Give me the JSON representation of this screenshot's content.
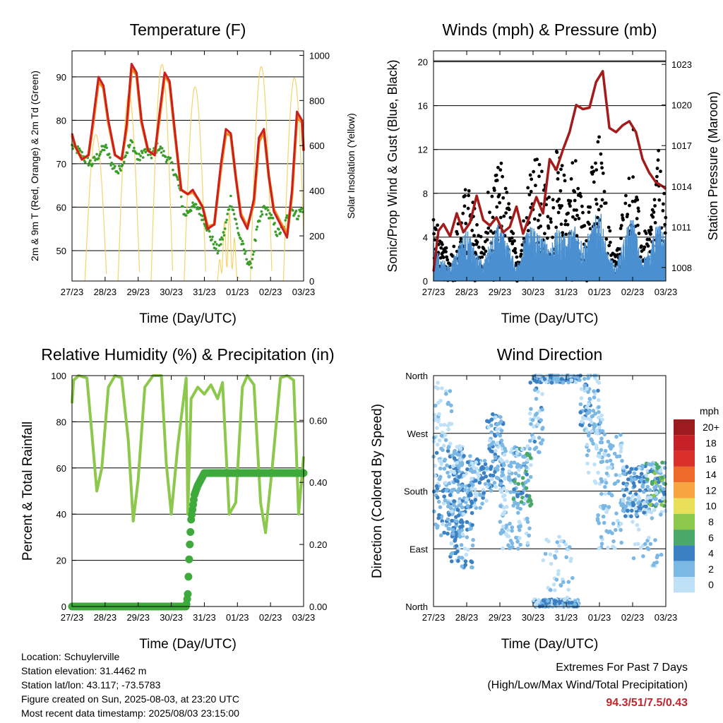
{
  "colors": {
    "temp_red": "#cc1f1f",
    "temp_orange": "#f08c1e",
    "dewpoint_green": "#3a9d2a",
    "solar_yellow": "#f3d56b",
    "gust_black": "#000000",
    "wind_blue": "#4a90d0",
    "pressure_maroon": "#a31b1b",
    "rh_lightgreen": "#8cc84b",
    "rain_green": "#3faa3c",
    "highlight_red": "#c0272d"
  },
  "x_tick_labels": [
    "27/23",
    "28/23",
    "29/23",
    "30/23",
    "31/23",
    "01/23",
    "02/23",
    "03/23"
  ],
  "chart_data": [
    {
      "type": "line",
      "title": "Temperature (F)",
      "xlabel": "Time (Day/UTC)",
      "ylabel": "2m & 9m T (Red, Orange) & 2m Td (Green)",
      "ylabel_right": "Solar Insolation (Yellow)",
      "ylim": [
        43,
        96
      ],
      "yticks": [
        50,
        60,
        70,
        80,
        90
      ],
      "ylim_right": [
        0,
        1020
      ],
      "yticks_right": [
        0,
        200,
        400,
        600,
        800,
        1000
      ],
      "xlim": [
        0,
        7
      ],
      "grid": true,
      "series": [
        {
          "key": "t2m",
          "x": [
            0,
            0.1,
            0.3,
            0.5,
            0.65,
            0.8,
            0.95,
            1.1,
            1.3,
            1.5,
            1.65,
            1.8,
            1.95,
            2.1,
            2.3,
            2.5,
            2.65,
            2.8,
            2.95,
            3.1,
            3.3,
            3.5,
            3.65,
            3.8,
            3.95,
            4.1,
            4.3,
            4.5,
            4.65,
            4.8,
            4.95,
            5.1,
            5.3,
            5.5,
            5.65,
            5.8,
            5.95,
            6.1,
            6.3,
            6.5,
            6.65,
            6.8,
            6.95,
            7
          ],
          "y": [
            77,
            74,
            71,
            72,
            81,
            90,
            88,
            80,
            72,
            71,
            79,
            93,
            91,
            80,
            73,
            72,
            82,
            91,
            89,
            78,
            64,
            63,
            64,
            62,
            60,
            55,
            56,
            70,
            78,
            77,
            67,
            58,
            55,
            62,
            76,
            78,
            67,
            59,
            56,
            53,
            64,
            82,
            80,
            73
          ]
        },
        {
          "key": "t9m",
          "x": [
            0,
            0.1,
            0.3,
            0.5,
            0.65,
            0.8,
            0.95,
            1.1,
            1.3,
            1.5,
            1.65,
            1.8,
            1.95,
            2.1,
            2.3,
            2.5,
            2.65,
            2.8,
            2.95,
            3.1,
            3.3,
            3.5,
            3.65,
            3.8,
            3.95,
            4.1,
            4.3,
            4.5,
            4.65,
            4.8,
            4.95,
            5.1,
            5.3,
            5.5,
            5.65,
            5.8,
            5.95,
            6.1,
            6.3,
            6.5,
            6.65,
            6.8,
            6.95,
            7
          ],
          "y": [
            76.5,
            74,
            71,
            72,
            80,
            89,
            87.5,
            79.5,
            72,
            71,
            78,
            92,
            90.5,
            79.5,
            73,
            72,
            81,
            90.5,
            88.5,
            77.5,
            64,
            63,
            63.5,
            62,
            60,
            55.5,
            56,
            69,
            77,
            76.5,
            67,
            58.5,
            55.5,
            61,
            75,
            77.5,
            67,
            59.5,
            56.5,
            53.5,
            63,
            81,
            79.5,
            73
          ]
        },
        {
          "key": "td2m",
          "x": [
            0,
            0.2,
            0.4,
            0.6,
            0.8,
            1.0,
            1.2,
            1.4,
            1.6,
            1.8,
            2.0,
            2.2,
            2.4,
            2.6,
            2.8,
            3.0,
            3.2,
            3.4,
            3.6,
            3.8,
            4.0,
            4.2,
            4.4,
            4.6,
            4.8,
            5.0,
            5.2,
            5.4,
            5.6,
            5.8,
            6.0,
            6.2,
            6.4,
            6.6,
            6.8,
            7
          ],
          "y": [
            74,
            73,
            71,
            70,
            72,
            74,
            70,
            68,
            72,
            75,
            71,
            73,
            72,
            74,
            72,
            70,
            66,
            58,
            60,
            60,
            57,
            53,
            50,
            54,
            62,
            55,
            50,
            46,
            55,
            60,
            58,
            54,
            55,
            60,
            58,
            60
          ]
        }
      ]
    },
    {
      "type": "scatter",
      "title": "Winds (mph) & Pressure (mb)",
      "xlabel": "Time (Day/UTC)",
      "ylabel": "Sonic/Prop Wind & Gust (Blue, Black)",
      "ylabel_right": "Station Pressure (Maroon)",
      "ylim": [
        0,
        21
      ],
      "yticks": [
        0,
        4,
        8,
        12,
        16,
        20
      ],
      "ylim_right": [
        1007,
        1024
      ],
      "yticks_right": [
        1008,
        1011,
        1014,
        1017,
        1020,
        1023
      ],
      "xlim": [
        0,
        7
      ],
      "grid": true,
      "pressure": {
        "x": [
          0,
          0.15,
          0.3,
          0.5,
          0.7,
          0.9,
          1.1,
          1.3,
          1.5,
          1.7,
          1.9,
          2.1,
          2.3,
          2.5,
          2.7,
          2.9,
          3.1,
          3.3,
          3.5,
          3.7,
          3.9,
          4.1,
          4.3,
          4.5,
          4.7,
          4.9,
          5.1,
          5.3,
          5.5,
          5.7,
          5.9,
          6.1,
          6.3,
          6.5,
          6.7,
          6.9,
          7
        ],
        "y": [
          1007.7,
          1010.7,
          1011.2,
          1010.3,
          1012,
          1010.6,
          1011.3,
          1013.3,
          1011.5,
          1011.1,
          1011.7,
          1010.6,
          1011,
          1012.5,
          1010.5,
          1011.8,
          1013.2,
          1012,
          1016,
          1015.2,
          1016.7,
          1018,
          1020,
          1019.7,
          1019.8,
          1021.7,
          1022.5,
          1018.3,
          1018,
          1018.5,
          1018.8,
          1018,
          1016,
          1015,
          1014.3,
          1014,
          1013.8
        ]
      },
      "wind_band": {
        "x": [
          0,
          0.25,
          0.5,
          0.75,
          1.0,
          1.25,
          1.5,
          1.75,
          2.0,
          2.25,
          2.5,
          2.75,
          3.0,
          3.25,
          3.5,
          3.75,
          4.0,
          4.25,
          4.5,
          4.75,
          5.0,
          5.25,
          5.5,
          5.75,
          6.0,
          6.25,
          6.5,
          6.75,
          7
        ],
        "y": [
          2.5,
          1.5,
          1,
          2.5,
          3.5,
          2,
          1.2,
          3,
          4,
          2.5,
          1,
          3,
          4,
          3,
          2.5,
          3.5,
          3,
          4,
          2.5,
          3.5,
          5,
          1.8,
          1,
          3,
          4.5,
          1.5,
          2,
          4,
          3
        ]
      },
      "gust_envelope": {
        "x": [
          0,
          0.25,
          0.5,
          0.75,
          1.0,
          1.25,
          1.5,
          1.75,
          2.0,
          2.25,
          2.5,
          2.75,
          3.0,
          3.25,
          3.5,
          3.75,
          4.0,
          4.25,
          4.5,
          4.75,
          5.0,
          5.25,
          5.5,
          5.75,
          6.0,
          6.25,
          6.5,
          6.75,
          7
        ],
        "y": [
          6,
          3,
          2,
          5,
          8,
          6,
          3,
          7,
          10,
          7,
          2,
          6,
          12,
          9,
          7,
          11,
          8,
          11,
          6,
          9,
          12,
          5,
          2,
          7,
          10,
          4,
          4,
          11,
          6
        ]
      }
    },
    {
      "type": "line",
      "title": "Relative Humidity (%) & Precipitation (in)",
      "xlabel": "Time (Day/UTC)",
      "ylabel": "Percent & Total Rainfall",
      "ylim": [
        0,
        100
      ],
      "yticks": [
        0,
        20,
        40,
        60,
        80,
        100
      ],
      "ylim_right": [
        0,
        0.744
      ],
      "yticks_right": [
        "0.00",
        "0.20",
        "0.40",
        "0.60"
      ],
      "xlim": [
        0,
        7
      ],
      "grid": true,
      "series": [
        {
          "key": "rh",
          "x": [
            0,
            0.05,
            0.2,
            0.45,
            0.6,
            0.75,
            0.9,
            1.1,
            1.3,
            1.5,
            1.7,
            1.85,
            2.0,
            2.2,
            2.45,
            2.7,
            2.85,
            3.0,
            3.2,
            3.45,
            3.5,
            3.6,
            3.8,
            4.0,
            4.2,
            4.4,
            4.55,
            4.75,
            4.95,
            5.15,
            5.3,
            5.5,
            5.7,
            5.85,
            6.05,
            6.3,
            6.5,
            6.7,
            6.85,
            7
          ],
          "y": [
            88,
            98,
            100,
            99,
            75,
            50,
            60,
            95,
            100,
            99,
            72,
            37,
            55,
            95,
            100,
            100,
            62,
            40,
            70,
            99,
            40,
            90,
            95,
            92,
            96,
            90,
            97,
            40,
            45,
            95,
            100,
            96,
            45,
            32,
            60,
            99,
            100,
            98,
            40,
            65
          ]
        },
        {
          "key": "rain",
          "x": [
            0,
            3.45,
            3.5,
            3.55,
            3.6,
            3.7,
            3.8,
            3.9,
            4.0,
            7
          ],
          "y": [
            0,
            0,
            0.04,
            0.18,
            0.28,
            0.36,
            0.39,
            0.41,
            0.43,
            0.43
          ]
        }
      ]
    },
    {
      "type": "scatter",
      "title": "Wind Direction",
      "xlabel": "Time (Day/UTC)",
      "ylabel": "Direction (Colored By Speed)",
      "ylim": [
        0,
        360
      ],
      "yticks": [
        "North",
        "East",
        "South",
        "West",
        "North"
      ],
      "xlim": [
        0,
        7
      ],
      "grid": true,
      "legend_title": "mph",
      "legend_labels": [
        "20+",
        "18",
        "16",
        "14",
        "12",
        "10",
        "8",
        "6",
        "4",
        "2",
        "0"
      ],
      "legend_colors": [
        "#9b1b1e",
        "#c62127",
        "#d9312a",
        "#ee6a2b",
        "#f8a440",
        "#eadf58",
        "#8cc84b",
        "#4aa868",
        "#3c80c4",
        "#7cb8e4",
        "#bfe1f7"
      ]
    }
  ],
  "info": {
    "location": "Location: Schuylerville",
    "elevation": "Station elevation: 31.4462 m",
    "latlon": "Station lat/lon: 43.117; -73.5783",
    "created": "Figure created on Sun, 2025-08-03, at 23:20 UTC",
    "recent": "Most recent data timestamp: 2025/08/03 23:15:00"
  },
  "extremes": {
    "line1": "Extremes For Past 7 Days",
    "line2": "(High/Low/Max Wind/Total Precipitation)",
    "values": "94.3/51/7.5/0.43"
  }
}
